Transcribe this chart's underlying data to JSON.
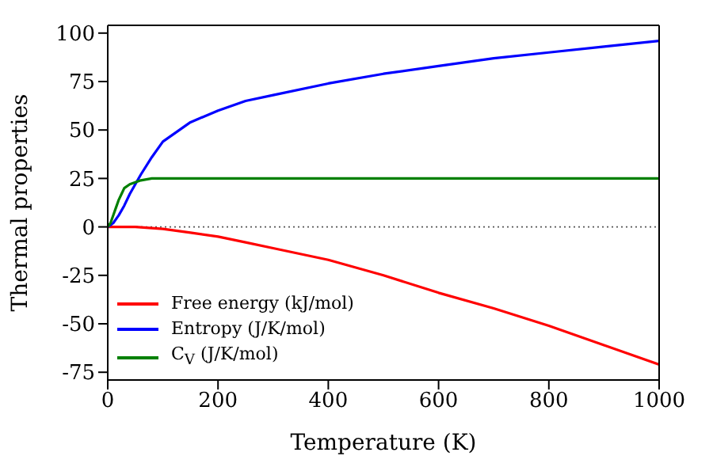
{
  "chart_data": {
    "type": "line",
    "xlabel": "Temperature (K)",
    "ylabel": "Thermal properties",
    "xlim": [
      0,
      1000
    ],
    "xticks": [
      0,
      200,
      400,
      600,
      800,
      1000
    ],
    "ylim": [
      -79,
      104
    ],
    "yticks": [
      -75,
      -50,
      -25,
      0,
      25,
      50,
      75,
      100
    ],
    "grid": false,
    "legend": "bottom left",
    "marker": "none",
    "line_style": "solid",
    "ref_lines": [
      {
        "axis": "y",
        "value": 0,
        "color": "#555555",
        "line_style": "dotted"
      }
    ],
    "series": [
      {
        "name": "Free energy (kJ/mol)",
        "color": "#ff0000",
        "x": [
          0,
          50,
          100,
          150,
          200,
          250,
          300,
          400,
          500,
          600,
          700,
          800,
          900,
          1000
        ],
        "values": [
          0,
          0,
          -1,
          -3,
          -5,
          -8,
          -11,
          -17,
          -25,
          -34,
          -42,
          -51,
          -61,
          -71
        ]
      },
      {
        "name": "Entropy (J/K/mol)",
        "color": "#0000ff",
        "x": [
          0,
          10,
          20,
          30,
          40,
          50,
          60,
          80,
          100,
          150,
          200,
          250,
          300,
          400,
          500,
          600,
          700,
          800,
          900,
          1000
        ],
        "values": [
          0,
          2,
          6,
          11,
          17,
          22,
          27,
          36,
          44,
          54,
          60,
          65,
          68,
          74,
          79,
          83,
          87,
          90,
          93,
          96
        ]
      },
      {
        "name": "C$_{V}$ (J/K/mol)",
        "color": "#008000",
        "x": [
          0,
          5,
          10,
          15,
          20,
          25,
          30,
          40,
          50,
          60,
          80,
          100,
          150,
          200,
          400,
          600,
          800,
          1000
        ],
        "values": [
          0,
          2,
          6,
          10,
          14,
          17,
          20,
          22,
          23,
          24,
          25,
          25,
          25,
          25,
          25,
          25,
          25,
          25
        ]
      }
    ]
  }
}
